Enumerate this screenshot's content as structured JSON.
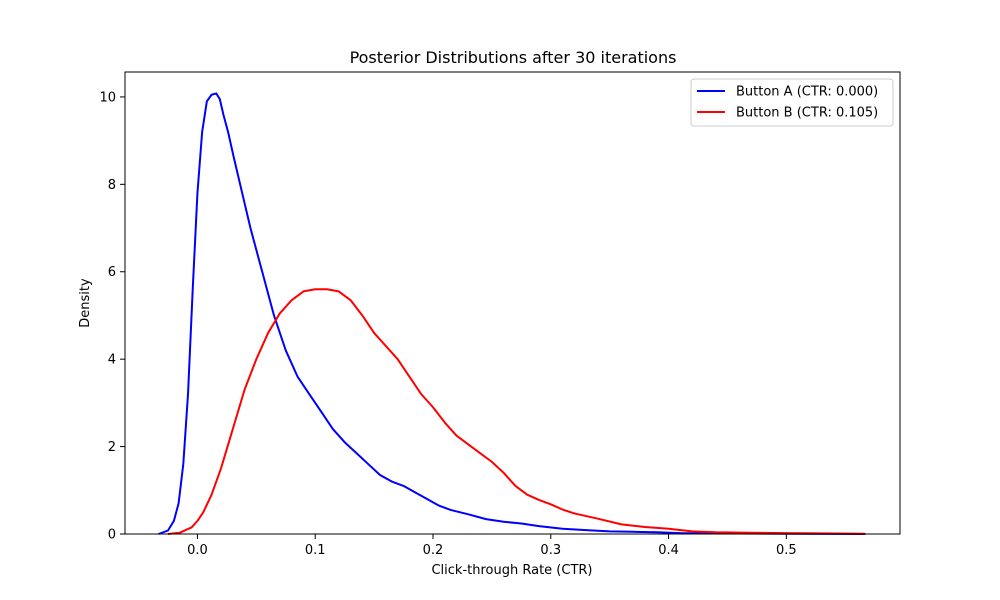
{
  "chart_data": {
    "type": "line",
    "title": "Posterior Distributions after 30 iterations",
    "xlabel": "Click-through Rate (CTR)",
    "ylabel": "Density",
    "xlim": [
      -0.0615,
      0.5965
    ],
    "ylim": [
      0,
      10.57
    ],
    "xticks": [
      0.0,
      0.1,
      0.2,
      0.3,
      0.4,
      0.5
    ],
    "xtick_labels": [
      "0.0",
      "0.1",
      "0.2",
      "0.3",
      "0.4",
      "0.5"
    ],
    "yticks": [
      0,
      2,
      4,
      6,
      8,
      10
    ],
    "ytick_labels": [
      "0",
      "2",
      "4",
      "6",
      "8",
      "10"
    ],
    "grid": false,
    "legend_position": "top-right",
    "series": [
      {
        "name": "Button A (CTR: 0.000)",
        "color": "#0000ff",
        "x": [
          -0.033,
          -0.025,
          -0.02,
          -0.016,
          -0.012,
          -0.008,
          -0.004,
          0.0,
          0.004,
          0.008,
          0.012,
          0.016,
          0.019,
          0.022,
          0.026,
          0.031,
          0.038,
          0.045,
          0.055,
          0.065,
          0.075,
          0.085,
          0.095,
          0.105,
          0.115,
          0.125,
          0.135,
          0.145,
          0.155,
          0.165,
          0.175,
          0.185,
          0.195,
          0.205,
          0.215,
          0.23,
          0.245,
          0.26,
          0.275,
          0.29,
          0.31,
          0.33,
          0.35,
          0.37,
          0.39,
          0.41,
          0.43,
          0.46,
          0.5,
          0.54,
          0.567
        ],
        "y": [
          0.0,
          0.08,
          0.3,
          0.7,
          1.6,
          3.2,
          5.6,
          7.8,
          9.2,
          9.9,
          10.05,
          10.08,
          9.95,
          9.6,
          9.2,
          8.6,
          7.8,
          7.0,
          6.0,
          5.0,
          4.2,
          3.6,
          3.2,
          2.8,
          2.4,
          2.1,
          1.85,
          1.6,
          1.35,
          1.2,
          1.1,
          0.95,
          0.8,
          0.65,
          0.55,
          0.45,
          0.34,
          0.28,
          0.24,
          0.18,
          0.12,
          0.09,
          0.06,
          0.05,
          0.04,
          0.02,
          0.015,
          0.01,
          0.005,
          0.003,
          0.0
        ]
      },
      {
        "name": "Button B (CTR: 0.105)",
        "color": "#ff0000",
        "x": [
          -0.025,
          -0.015,
          -0.005,
          0.0,
          0.005,
          0.012,
          0.02,
          0.03,
          0.04,
          0.05,
          0.06,
          0.07,
          0.08,
          0.09,
          0.1,
          0.11,
          0.12,
          0.13,
          0.14,
          0.15,
          0.16,
          0.17,
          0.18,
          0.19,
          0.2,
          0.21,
          0.22,
          0.23,
          0.24,
          0.25,
          0.26,
          0.27,
          0.28,
          0.29,
          0.3,
          0.31,
          0.32,
          0.34,
          0.36,
          0.38,
          0.4,
          0.42,
          0.44,
          0.47,
          0.5,
          0.53,
          0.567
        ],
        "y": [
          0.0,
          0.03,
          0.15,
          0.3,
          0.5,
          0.9,
          1.5,
          2.4,
          3.3,
          4.0,
          4.6,
          5.05,
          5.35,
          5.55,
          5.6,
          5.6,
          5.55,
          5.35,
          5.0,
          4.6,
          4.3,
          4.0,
          3.6,
          3.2,
          2.9,
          2.55,
          2.25,
          2.05,
          1.85,
          1.65,
          1.4,
          1.1,
          0.9,
          0.78,
          0.68,
          0.56,
          0.47,
          0.35,
          0.22,
          0.16,
          0.12,
          0.06,
          0.04,
          0.03,
          0.02,
          0.015,
          0.005
        ]
      }
    ]
  }
}
